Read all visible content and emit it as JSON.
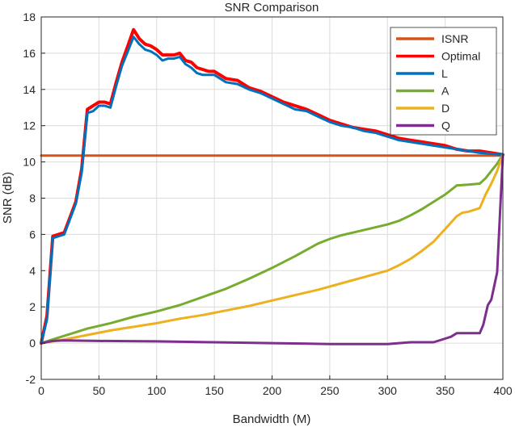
{
  "chart_data": {
    "type": "line",
    "title": "SNR Comparison",
    "xlabel": "Bandwidth (M)",
    "ylabel": "SNR (dB)",
    "xlim": [
      0,
      400
    ],
    "ylim": [
      -2,
      18
    ],
    "xticks": [
      0,
      50,
      100,
      150,
      200,
      250,
      300,
      350,
      400
    ],
    "yticks": [
      -2,
      0,
      2,
      4,
      6,
      8,
      10,
      12,
      14,
      16,
      18
    ],
    "grid": true,
    "legend_position": "top-right",
    "series": [
      {
        "name": "ISNR",
        "color": "#D95319",
        "x": [
          0,
          400
        ],
        "y": [
          10.35,
          10.35
        ]
      },
      {
        "name": "Optimal",
        "color": "#FF0000",
        "x": [
          0,
          5,
          10,
          20,
          30,
          35,
          40,
          45,
          50,
          55,
          60,
          65,
          70,
          75,
          80,
          85,
          90,
          95,
          100,
          105,
          110,
          115,
          120,
          125,
          130,
          135,
          140,
          145,
          150,
          160,
          170,
          180,
          190,
          200,
          210,
          220,
          230,
          240,
          250,
          260,
          270,
          280,
          290,
          300,
          310,
          320,
          330,
          340,
          350,
          360,
          370,
          380,
          390,
          400
        ],
        "y": [
          0,
          1.5,
          5.9,
          6.1,
          7.8,
          9.6,
          12.9,
          13.1,
          13.3,
          13.3,
          13.2,
          14.4,
          15.5,
          16.4,
          17.3,
          16.8,
          16.5,
          16.4,
          16.2,
          15.9,
          15.9,
          15.9,
          16.0,
          15.6,
          15.5,
          15.2,
          15.1,
          15.0,
          15.0,
          14.6,
          14.5,
          14.1,
          13.9,
          13.6,
          13.3,
          13.1,
          12.9,
          12.6,
          12.3,
          12.1,
          11.9,
          11.8,
          11.7,
          11.5,
          11.3,
          11.2,
          11.1,
          11.0,
          10.9,
          10.7,
          10.6,
          10.6,
          10.5,
          10.4
        ]
      },
      {
        "name": "L",
        "color": "#0072BD",
        "x": [
          0,
          5,
          10,
          20,
          30,
          35,
          40,
          45,
          50,
          55,
          60,
          65,
          70,
          75,
          80,
          85,
          90,
          95,
          100,
          105,
          110,
          115,
          120,
          125,
          130,
          135,
          140,
          145,
          150,
          160,
          170,
          180,
          190,
          200,
          210,
          220,
          230,
          240,
          250,
          260,
          270,
          280,
          290,
          300,
          310,
          320,
          330,
          340,
          350,
          360,
          370,
          380,
          390,
          400
        ],
        "y": [
          0,
          1.3,
          5.8,
          6.0,
          7.7,
          9.4,
          12.7,
          12.8,
          13.1,
          13.1,
          13.0,
          14.2,
          15.3,
          16.1,
          16.9,
          16.5,
          16.2,
          16.1,
          15.9,
          15.6,
          15.7,
          15.7,
          15.8,
          15.4,
          15.2,
          14.9,
          14.8,
          14.8,
          14.8,
          14.4,
          14.3,
          14.0,
          13.8,
          13.5,
          13.2,
          12.9,
          12.8,
          12.5,
          12.2,
          12.0,
          11.9,
          11.7,
          11.6,
          11.4,
          11.2,
          11.1,
          11.0,
          10.9,
          10.8,
          10.7,
          10.6,
          10.5,
          10.45,
          10.4
        ]
      },
      {
        "name": "A",
        "color": "#77AC30",
        "x": [
          0,
          20,
          40,
          60,
          80,
          100,
          120,
          140,
          160,
          180,
          200,
          220,
          240,
          250,
          260,
          270,
          280,
          290,
          300,
          310,
          320,
          330,
          340,
          350,
          360,
          370,
          380,
          385,
          390,
          395,
          400
        ],
        "y": [
          0,
          0.4,
          0.8,
          1.1,
          1.45,
          1.75,
          2.1,
          2.55,
          3.0,
          3.55,
          4.15,
          4.8,
          5.5,
          5.75,
          5.95,
          6.1,
          6.25,
          6.4,
          6.55,
          6.75,
          7.05,
          7.4,
          7.8,
          8.2,
          8.7,
          8.75,
          8.8,
          9.1,
          9.5,
          9.9,
          10.4
        ]
      },
      {
        "name": "D",
        "color": "#EDB120",
        "x": [
          0,
          20,
          40,
          60,
          80,
          100,
          120,
          140,
          160,
          180,
          200,
          220,
          240,
          260,
          280,
          300,
          310,
          320,
          330,
          340,
          350,
          360,
          365,
          370,
          380,
          385,
          390,
          395,
          400
        ],
        "y": [
          0,
          0.2,
          0.45,
          0.7,
          0.9,
          1.1,
          1.35,
          1.55,
          1.8,
          2.05,
          2.35,
          2.65,
          2.95,
          3.3,
          3.65,
          4.0,
          4.3,
          4.65,
          5.1,
          5.6,
          6.3,
          7.0,
          7.2,
          7.25,
          7.45,
          8.2,
          8.8,
          9.5,
          10.4
        ]
      },
      {
        "name": "Q",
        "color": "#7E2F8E",
        "x": [
          0,
          10,
          20,
          50,
          100,
          150,
          200,
          250,
          300,
          320,
          340,
          350,
          355,
          360,
          365,
          370,
          375,
          380,
          383,
          387,
          390,
          395,
          400
        ],
        "y": [
          0,
          0.12,
          0.15,
          0.12,
          0.1,
          0.05,
          0.0,
          -0.05,
          -0.05,
          0.05,
          0.05,
          0.25,
          0.35,
          0.55,
          0.55,
          0.55,
          0.55,
          0.55,
          1.0,
          2.1,
          2.4,
          3.9,
          10.4
        ]
      }
    ]
  }
}
